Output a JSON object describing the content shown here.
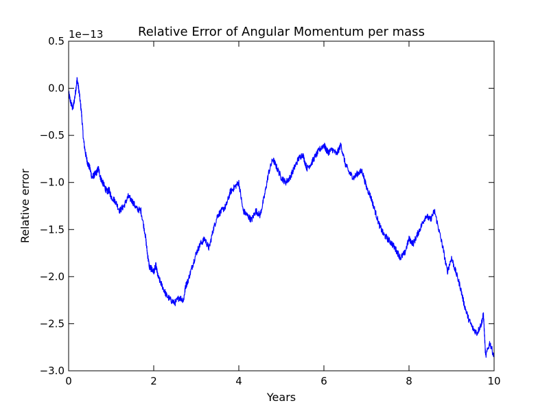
{
  "chart_data": {
    "type": "line",
    "title": "Relative Error of Angular Momentum per mass",
    "xlabel": "Years",
    "ylabel": "Relative error",
    "y_offset_text": "1e−13",
    "xlim": [
      0,
      10
    ],
    "ylim": [
      -3.0,
      0.5
    ],
    "x_ticks": [
      0,
      2,
      4,
      6,
      8,
      10
    ],
    "x_tick_labels": [
      "0",
      "2",
      "4",
      "6",
      "8",
      "10"
    ],
    "y_ticks": [
      0.5,
      0.0,
      -0.5,
      -1.0,
      -1.5,
      -2.0,
      -2.5,
      -3.0
    ],
    "y_tick_labels": [
      "0.5",
      "0.0",
      "−0.5",
      "−1.0",
      "−1.5",
      "−2.0",
      "−2.5",
      "−3.0"
    ],
    "grid": false,
    "legend": "none",
    "series_color": "#0000ff",
    "series": [
      {
        "x": [
          0.0,
          0.05,
          0.1,
          0.15,
          0.2,
          0.25,
          0.3,
          0.35,
          0.4,
          0.45,
          0.5,
          0.55,
          0.6,
          0.65,
          0.7,
          0.75,
          0.8,
          0.85,
          0.9,
          0.95,
          1.0,
          1.1,
          1.2,
          1.3,
          1.4,
          1.5,
          1.6,
          1.7,
          1.8,
          1.85,
          1.9,
          1.95,
          2.0,
          2.05,
          2.1,
          2.2,
          2.3,
          2.4,
          2.5,
          2.6,
          2.7,
          2.75,
          2.8,
          2.9,
          3.0,
          3.1,
          3.2,
          3.3,
          3.4,
          3.5,
          3.6,
          3.7,
          3.8,
          3.9,
          4.0,
          4.1,
          4.2,
          4.3,
          4.4,
          4.5,
          4.6,
          4.7,
          4.8,
          4.9,
          5.0,
          5.1,
          5.2,
          5.3,
          5.4,
          5.5,
          5.6,
          5.7,
          5.8,
          5.9,
          6.0,
          6.05,
          6.1,
          6.2,
          6.3,
          6.4,
          6.5,
          6.6,
          6.7,
          6.8,
          6.9,
          7.0,
          7.1,
          7.2,
          7.3,
          7.4,
          7.5,
          7.6,
          7.7,
          7.8,
          7.9,
          8.0,
          8.1,
          8.2,
          8.3,
          8.4,
          8.5,
          8.6,
          8.7,
          8.8,
          8.9,
          9.0,
          9.1,
          9.2,
          9.3,
          9.4,
          9.5,
          9.6,
          9.7,
          9.75,
          9.8,
          9.9,
          10.0
        ],
        "values": [
          -0.05,
          -0.15,
          -0.22,
          -0.08,
          0.1,
          -0.05,
          -0.25,
          -0.55,
          -0.7,
          -0.8,
          -0.85,
          -0.95,
          -0.92,
          -0.9,
          -0.85,
          -0.95,
          -1.0,
          -1.05,
          -1.1,
          -1.08,
          -1.15,
          -1.2,
          -1.3,
          -1.25,
          -1.15,
          -1.2,
          -1.28,
          -1.3,
          -1.55,
          -1.75,
          -1.9,
          -1.92,
          -1.95,
          -1.88,
          -2.0,
          -2.1,
          -2.2,
          -2.25,
          -2.28,
          -2.22,
          -2.25,
          -2.1,
          -2.05,
          -1.9,
          -1.75,
          -1.65,
          -1.6,
          -1.7,
          -1.5,
          -1.35,
          -1.3,
          -1.25,
          -1.1,
          -1.05,
          -1.0,
          -1.3,
          -1.35,
          -1.4,
          -1.3,
          -1.35,
          -1.15,
          -0.9,
          -0.75,
          -0.85,
          -0.95,
          -1.0,
          -0.95,
          -0.85,
          -0.75,
          -0.7,
          -0.85,
          -0.8,
          -0.72,
          -0.65,
          -0.6,
          -0.65,
          -0.68,
          -0.65,
          -0.7,
          -0.6,
          -0.8,
          -0.9,
          -0.95,
          -0.9,
          -0.88,
          -1.05,
          -1.15,
          -1.3,
          -1.45,
          -1.55,
          -1.6,
          -1.65,
          -1.72,
          -1.8,
          -1.75,
          -1.6,
          -1.65,
          -1.55,
          -1.45,
          -1.35,
          -1.4,
          -1.3,
          -1.5,
          -1.7,
          -1.95,
          -1.8,
          -1.95,
          -2.1,
          -2.3,
          -2.45,
          -2.55,
          -2.6,
          -2.5,
          -2.4,
          -2.85,
          -2.7,
          -2.85
        ]
      }
    ]
  }
}
